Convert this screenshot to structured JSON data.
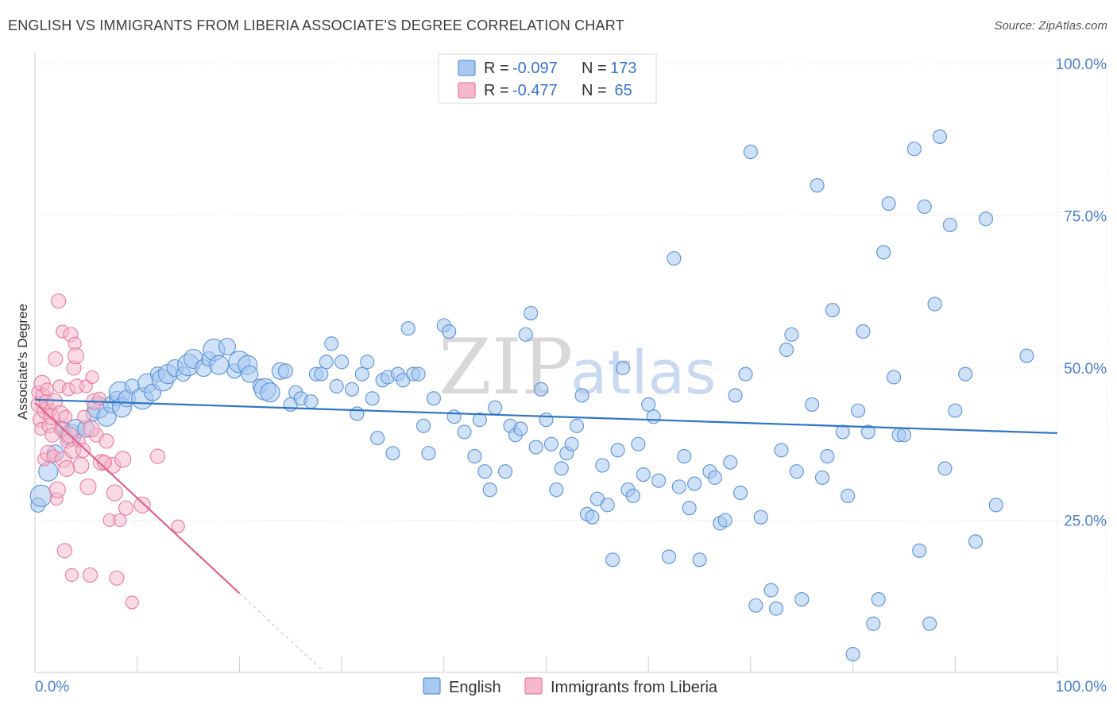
{
  "title": "ENGLISH VS IMMIGRANTS FROM LIBERIA ASSOCIATE'S DEGREE CORRELATION CHART",
  "source": "Source: ZipAtlas.com",
  "watermark": {
    "part1": "ZIP",
    "part2": "atlas"
  },
  "legend": {
    "rows": [
      {
        "r_label": "R = ",
        "r_value": "-0.097",
        "n_label": "N = ",
        "n_value": "173"
      },
      {
        "r_label": "R = ",
        "r_value": "-0.477",
        "n_label": "N = ",
        "n_value": " 65"
      }
    ]
  },
  "colors": {
    "english_fill": "#a8c8f0",
    "english_stroke": "#5b92d6",
    "liberia_fill": "#f6b8cc",
    "liberia_stroke": "#e8799d",
    "english_line": "#2f74c4",
    "liberia_line": "#e0628e",
    "grid": "#e3e3e3",
    "tick_label": "#4a7fcf"
  },
  "chart_data": {
    "type": "scatter",
    "xlabel": "",
    "ylabel": "Associate's Degree",
    "xlim": [
      0,
      100
    ],
    "ylim": [
      0,
      100
    ],
    "x_tick_labels": [
      "0.0%",
      "100.0%"
    ],
    "y_ticks": [
      25,
      50,
      75,
      100
    ],
    "y_tick_labels": [
      "25.0%",
      "50.0%",
      "75.0%",
      "100.0%"
    ],
    "grid": true,
    "legend_position": "top-center",
    "series": [
      {
        "name": "English",
        "r": -0.097,
        "n": 173,
        "trend": {
          "x0": 0,
          "y0": 44.8,
          "x1": 100,
          "y1": 39.3
        },
        "points": [
          [
            0.3,
            27.5
          ],
          [
            0.6,
            29
          ],
          [
            1.3,
            33
          ],
          [
            2,
            36
          ],
          [
            2.8,
            40
          ],
          [
            3.5,
            39
          ],
          [
            4,
            40
          ],
          [
            5,
            40
          ],
          [
            5.7,
            42.5
          ],
          [
            6.2,
            43.5
          ],
          [
            7,
            42
          ],
          [
            7.5,
            44
          ],
          [
            8,
            45
          ],
          [
            8.3,
            46
          ],
          [
            8.5,
            43.5
          ],
          [
            9,
            45
          ],
          [
            9.5,
            47
          ],
          [
            10.5,
            45
          ],
          [
            11,
            47.5
          ],
          [
            11.5,
            46
          ],
          [
            12,
            49
          ],
          [
            12.5,
            48
          ],
          [
            13,
            49
          ],
          [
            13.7,
            50
          ],
          [
            14.5,
            49
          ],
          [
            15,
            50.5
          ],
          [
            15.5,
            51.5
          ],
          [
            16.5,
            50
          ],
          [
            17,
            51.5
          ],
          [
            17.5,
            53
          ],
          [
            18,
            50.5
          ],
          [
            18.8,
            53.5
          ],
          [
            19.5,
            49.5
          ],
          [
            20,
            51
          ],
          [
            20.8,
            50.5
          ],
          [
            21,
            49
          ],
          [
            22,
            47
          ],
          [
            22.5,
            46.5
          ],
          [
            23,
            46
          ],
          [
            24,
            49.5
          ],
          [
            24.5,
            49.5
          ],
          [
            25,
            44
          ],
          [
            25.5,
            46
          ],
          [
            26,
            45
          ],
          [
            27,
            44.5
          ],
          [
            27.5,
            49
          ],
          [
            28,
            49
          ],
          [
            28.5,
            51
          ],
          [
            29,
            54
          ],
          [
            29.5,
            47
          ],
          [
            30,
            51
          ],
          [
            31,
            46.5
          ],
          [
            31.5,
            42.5
          ],
          [
            32,
            49
          ],
          [
            32.5,
            51
          ],
          [
            33,
            45
          ],
          [
            33.5,
            38.5
          ],
          [
            34,
            48
          ],
          [
            34.5,
            48.5
          ],
          [
            35,
            36
          ],
          [
            35.5,
            49
          ],
          [
            36,
            48
          ],
          [
            36.5,
            56.5
          ],
          [
            37,
            49
          ],
          [
            37.5,
            49
          ],
          [
            38,
            40.5
          ],
          [
            38.5,
            36
          ],
          [
            39,
            45
          ],
          [
            40,
            57
          ],
          [
            40.5,
            56
          ],
          [
            41,
            42
          ],
          [
            42,
            39.5
          ],
          [
            43,
            35.5
          ],
          [
            43.5,
            41.5
          ],
          [
            44,
            33
          ],
          [
            44.5,
            30
          ],
          [
            45,
            43.5
          ],
          [
            46,
            33
          ],
          [
            46.5,
            40.5
          ],
          [
            47,
            39
          ],
          [
            47.5,
            40
          ],
          [
            48,
            55.5
          ],
          [
            48.5,
            59
          ],
          [
            49,
            37
          ],
          [
            49.5,
            46.5
          ],
          [
            50,
            41.5
          ],
          [
            50.5,
            37.5
          ],
          [
            51,
            30
          ],
          [
            51.5,
            33.5
          ],
          [
            52,
            36
          ],
          [
            52.5,
            37.5
          ],
          [
            53,
            40.5
          ],
          [
            53.5,
            45.5
          ],
          [
            54,
            26
          ],
          [
            54.5,
            25.5
          ],
          [
            55,
            28.5
          ],
          [
            55.5,
            34
          ],
          [
            56,
            27.5
          ],
          [
            56.5,
            18.5
          ],
          [
            57,
            36.5
          ],
          [
            57.5,
            50
          ],
          [
            58,
            30
          ],
          [
            58.5,
            29
          ],
          [
            59,
            37.5
          ],
          [
            59.5,
            32.5
          ],
          [
            60,
            44
          ],
          [
            60.5,
            42
          ],
          [
            61,
            31.5
          ],
          [
            62,
            19
          ],
          [
            62.5,
            68
          ],
          [
            63,
            30.5
          ],
          [
            63.5,
            35.5
          ],
          [
            64,
            27
          ],
          [
            64.5,
            31
          ],
          [
            65,
            18.5
          ],
          [
            66,
            33
          ],
          [
            66.5,
            32
          ],
          [
            67,
            24.5
          ],
          [
            67.5,
            25
          ],
          [
            68,
            34.5
          ],
          [
            68.5,
            45.5
          ],
          [
            69,
            29.5
          ],
          [
            69.5,
            49
          ],
          [
            70,
            85.5
          ],
          [
            70.5,
            11
          ],
          [
            71,
            25.5
          ],
          [
            72,
            13.5
          ],
          [
            72.5,
            10.5
          ],
          [
            73,
            36.5
          ],
          [
            73.5,
            53
          ],
          [
            74,
            55.5
          ],
          [
            74.5,
            33
          ],
          [
            75,
            12
          ],
          [
            76,
            44
          ],
          [
            76.5,
            80
          ],
          [
            77,
            32
          ],
          [
            77.5,
            35.5
          ],
          [
            78,
            59.5
          ],
          [
            79,
            39.5
          ],
          [
            79.5,
            29
          ],
          [
            80,
            3
          ],
          [
            80.5,
            43
          ],
          [
            81,
            56
          ],
          [
            81.5,
            39.5
          ],
          [
            82,
            8
          ],
          [
            82.5,
            12
          ],
          [
            83,
            69
          ],
          [
            83.5,
            77
          ],
          [
            84,
            48.5
          ],
          [
            84.5,
            39
          ],
          [
            85,
            39
          ],
          [
            86,
            86
          ],
          [
            86.5,
            20
          ],
          [
            87,
            76.5
          ],
          [
            87.5,
            8
          ],
          [
            88,
            60.5
          ],
          [
            88.5,
            88
          ],
          [
            89,
            33.5
          ],
          [
            89.5,
            73.5
          ],
          [
            90,
            43
          ],
          [
            91,
            49
          ],
          [
            92,
            21.5
          ],
          [
            93,
            74.5
          ],
          [
            94,
            27.5
          ],
          [
            97,
            52
          ]
        ]
      },
      {
        "name": "Immigrants from Liberia",
        "r": -0.477,
        "n": 65,
        "trend": {
          "x0": 0,
          "y0": 44.3,
          "x1": 20,
          "y1": 13,
          "dash_x1": 28,
          "dash_y1": 0.5
        },
        "points": [
          [
            0.3,
            46
          ],
          [
            0.4,
            44
          ],
          [
            0.5,
            41.5
          ],
          [
            0.6,
            40
          ],
          [
            0.7,
            47.5
          ],
          [
            0.8,
            45.5
          ],
          [
            0.9,
            35
          ],
          [
            1,
            43
          ],
          [
            1.1,
            44.5
          ],
          [
            1.2,
            46.5
          ],
          [
            1.3,
            36
          ],
          [
            1.4,
            40.5
          ],
          [
            1.5,
            43
          ],
          [
            1.6,
            42
          ],
          [
            1.7,
            39
          ],
          [
            1.8,
            35.5
          ],
          [
            1.9,
            44.5
          ],
          [
            2,
            51.5
          ],
          [
            2.1,
            28.5
          ],
          [
            2.2,
            30
          ],
          [
            2.3,
            61
          ],
          [
            2.4,
            47
          ],
          [
            2.5,
            42.5
          ],
          [
            2.6,
            40
          ],
          [
            2.7,
            56
          ],
          [
            2.8,
            35
          ],
          [
            2.9,
            20
          ],
          [
            3,
            42
          ],
          [
            3.1,
            33.5
          ],
          [
            3.2,
            38
          ],
          [
            3.3,
            46.5
          ],
          [
            3.4,
            39
          ],
          [
            3.5,
            55.5
          ],
          [
            3.6,
            16
          ],
          [
            3.7,
            36.5
          ],
          [
            3.8,
            50
          ],
          [
            3.9,
            54
          ],
          [
            4,
            52
          ],
          [
            4.1,
            47
          ],
          [
            4.3,
            38
          ],
          [
            4.5,
            34
          ],
          [
            4.7,
            36.5
          ],
          [
            5,
            47
          ],
          [
            5.2,
            30.5
          ],
          [
            5.4,
            16
          ],
          [
            5.6,
            48.5
          ],
          [
            5.8,
            44.5
          ],
          [
            6,
            39
          ],
          [
            6.3,
            45
          ],
          [
            6.5,
            34.5
          ],
          [
            7,
            38
          ],
          [
            7.3,
            25
          ],
          [
            7.6,
            34
          ],
          [
            8,
            15.5
          ],
          [
            8.3,
            25
          ],
          [
            8.6,
            35
          ],
          [
            8.9,
            27
          ],
          [
            9.5,
            11.5
          ],
          [
            10.5,
            27.5
          ],
          [
            12,
            35.5
          ],
          [
            14,
            24
          ],
          [
            5.5,
            40
          ],
          [
            6.8,
            34.5
          ],
          [
            4.8,
            42
          ],
          [
            7.8,
            29.5
          ]
        ]
      }
    ]
  }
}
